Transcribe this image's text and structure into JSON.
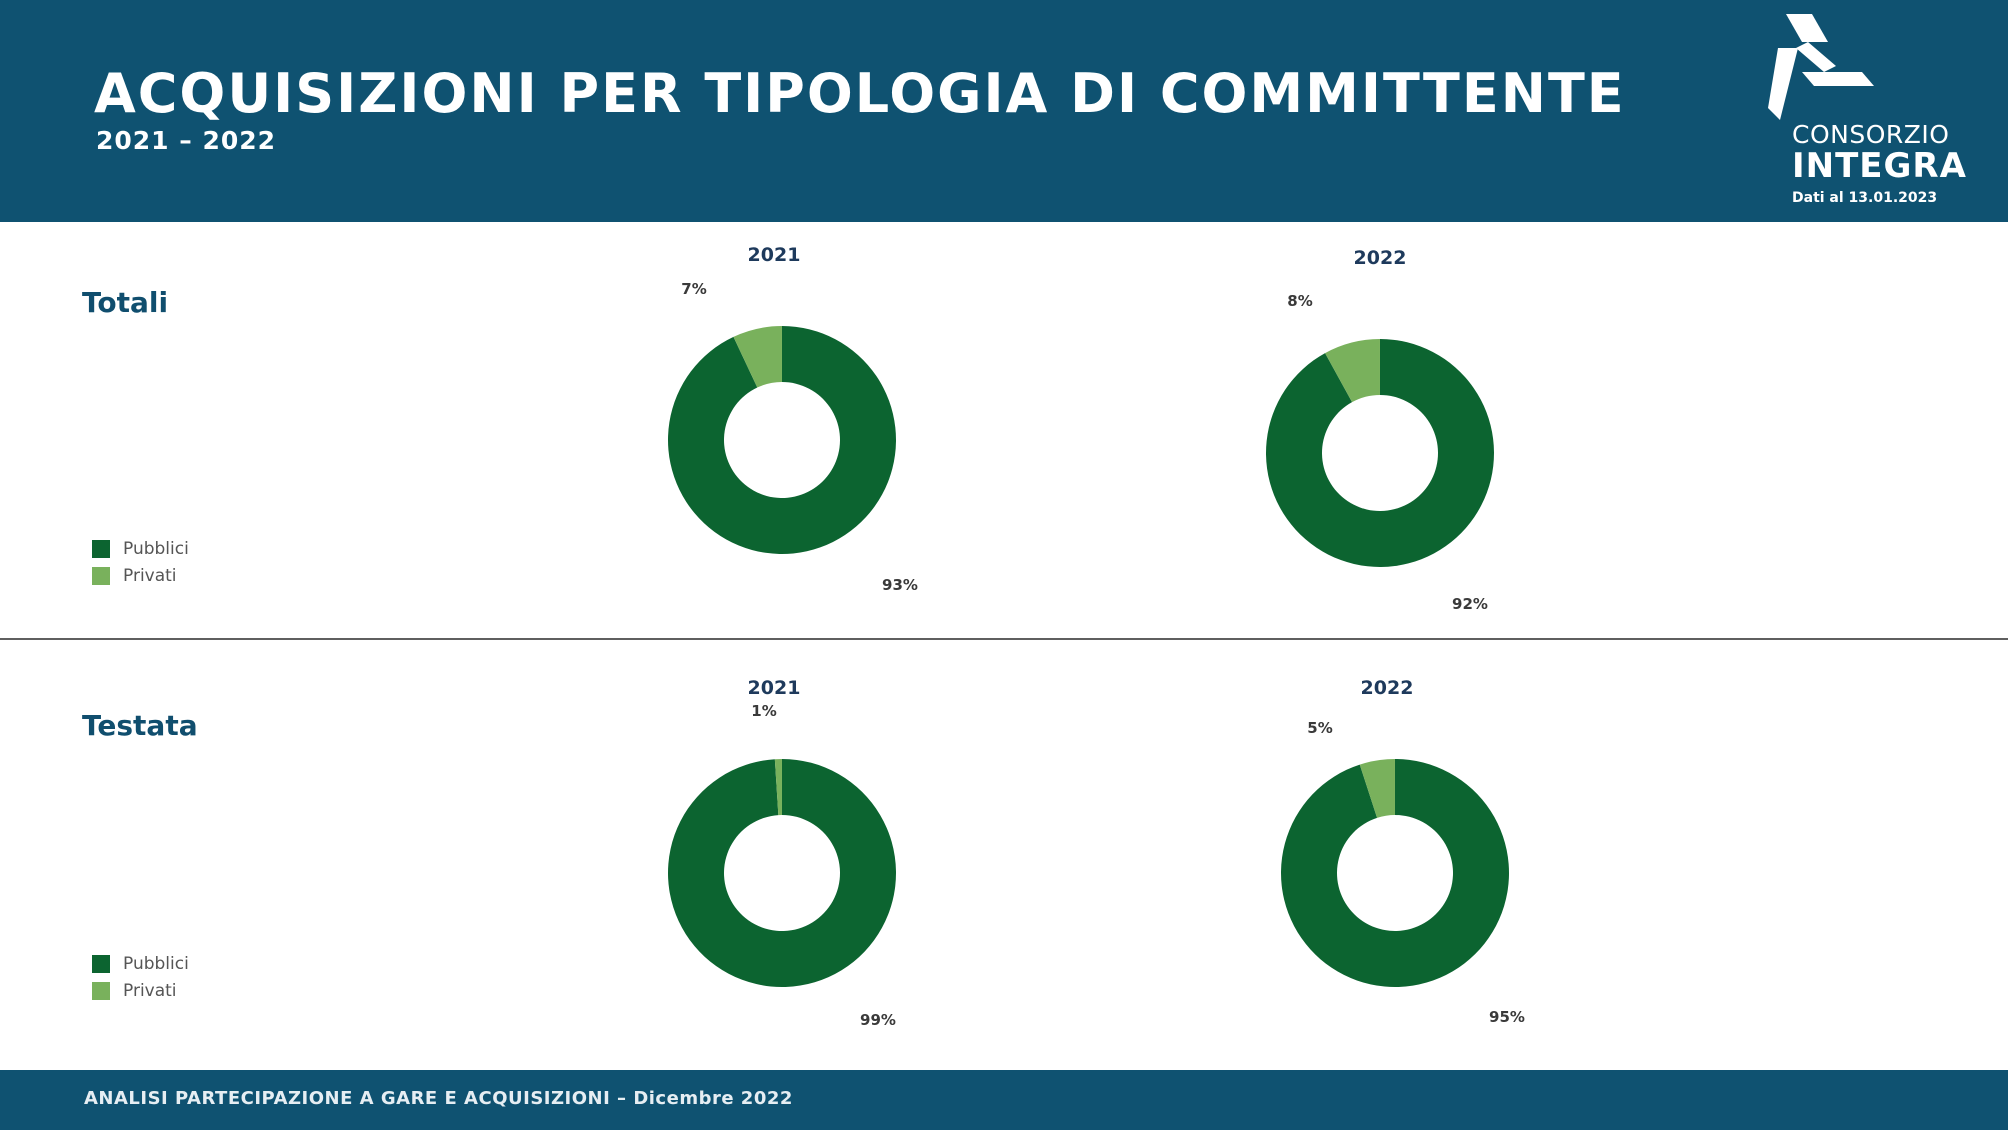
{
  "header": {
    "title": "ACQUISIZIONI PER TIPOLOGIA DI COMMITTENTE",
    "subtitle": "2021 – 2022"
  },
  "logo": {
    "line1": "CONSORZIO",
    "line2": "INTEGRA",
    "date": "Dati al 13.01.2023"
  },
  "colors": {
    "header_bg": "#0f5271",
    "pubblici": "#0c6430",
    "privati": "#79b15c"
  },
  "sections": [
    {
      "label": "Totali",
      "legend": [
        {
          "label": "Pubblici",
          "color": "#0c6430"
        },
        {
          "label": "Privati",
          "color": "#79b15c"
        }
      ]
    },
    {
      "label": "Testata",
      "legend": [
        {
          "label": "Pubblici",
          "color": "#0c6430"
        },
        {
          "label": "Privati",
          "color": "#79b15c"
        }
      ]
    }
  ],
  "chart_data": [
    {
      "type": "pie",
      "section": "Totali",
      "title": "2021",
      "categories": [
        "Pubblici",
        "Privati"
      ],
      "values": [
        93,
        7
      ],
      "labels": [
        "93%",
        "7%"
      ]
    },
    {
      "type": "pie",
      "section": "Totali",
      "title": "2022",
      "categories": [
        "Pubblici",
        "Privati"
      ],
      "values": [
        92,
        8
      ],
      "labels": [
        "92%",
        "8%"
      ]
    },
    {
      "type": "pie",
      "section": "Testata",
      "title": "2021",
      "categories": [
        "Pubblici",
        "Privati"
      ],
      "values": [
        99,
        1
      ],
      "labels": [
        "99%",
        "1%"
      ]
    },
    {
      "type": "pie",
      "section": "Testata",
      "title": "2022",
      "categories": [
        "Pubblici",
        "Privati"
      ],
      "values": [
        95,
        5
      ],
      "labels": [
        "95%",
        "5%"
      ]
    }
  ],
  "footer": {
    "text": "ANALISI PARTECIPAZIONE A GARE E ACQUISIZIONI – Dicembre 2022"
  }
}
